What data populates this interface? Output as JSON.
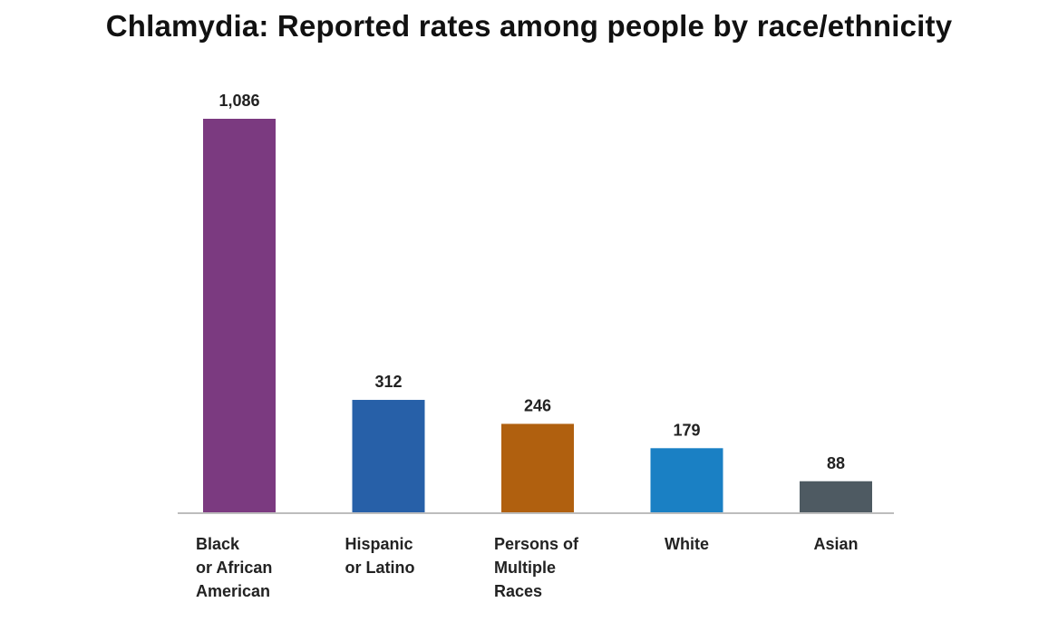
{
  "chart_data": {
    "type": "bar",
    "title": "Chlamydia: Reported rates among people by race/ethnicity",
    "categories": [
      [
        "Black",
        "or African",
        "American"
      ],
      [
        "Hispanic",
        "or Latino"
      ],
      [
        "Persons of",
        "Multiple",
        "Races"
      ],
      [
        "White"
      ],
      [
        "Asian"
      ]
    ],
    "values": [
      1086,
      312,
      246,
      179,
      88
    ],
    "value_labels": [
      "1,086",
      "312",
      "246",
      "179",
      "88"
    ],
    "colors": [
      "#7b3a80",
      "#2760a8",
      "#b0600f",
      "#1a80c4",
      "#4e5a62"
    ],
    "xlabel": "",
    "ylabel": "",
    "ylim": [
      0,
      1086
    ],
    "grid": false,
    "legend": "none"
  }
}
